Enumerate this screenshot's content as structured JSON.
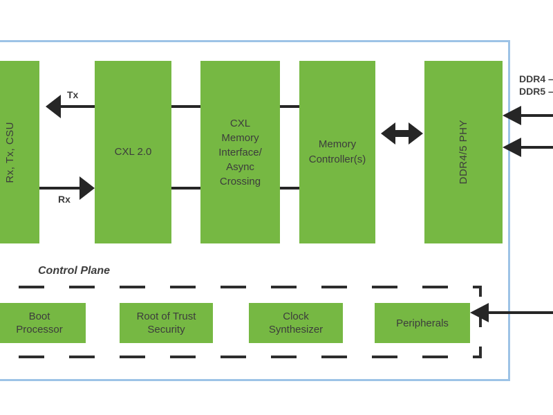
{
  "colors": {
    "block_green": "#76B843",
    "frame_blue": "#9DC3E6",
    "connector_dark": "#262626",
    "text_dark": "#3F3F3F"
  },
  "data_plane": {
    "blocks": [
      {
        "id": "rx-tx-csu",
        "label": "Rx, Tx, CSU",
        "orientation": "vertical"
      },
      {
        "id": "cxl-2-0",
        "label": "CXL 2.0",
        "orientation": "horizontal"
      },
      {
        "id": "cxl-memory-interface-async-crossing",
        "label": "CXL\nMemory\nInterface/\nAsync\nCrossing",
        "orientation": "horizontal"
      },
      {
        "id": "memory-controllers",
        "label": "Memory\nController(s)",
        "orientation": "horizontal"
      },
      {
        "id": "ddr4-5-phy",
        "label": "DDR4/5 PHY",
        "orientation": "vertical"
      }
    ],
    "arrow_labels": {
      "tx": "Tx",
      "rx": "Rx"
    },
    "external_interfaces": [
      {
        "id": "ddr4",
        "label": "DDR4 –"
      },
      {
        "id": "ddr5",
        "label": "DDR5 –"
      }
    ]
  },
  "control_plane": {
    "label": "Control Plane",
    "blocks": [
      {
        "id": "boot-processor",
        "label": "Boot\nProcessor"
      },
      {
        "id": "root-of-trust-security",
        "label": "Root of Trust\nSecurity"
      },
      {
        "id": "clock-synthesizer",
        "label": "Clock\nSynthesizer"
      },
      {
        "id": "peripherals",
        "label": "Peripherals"
      }
    ]
  }
}
